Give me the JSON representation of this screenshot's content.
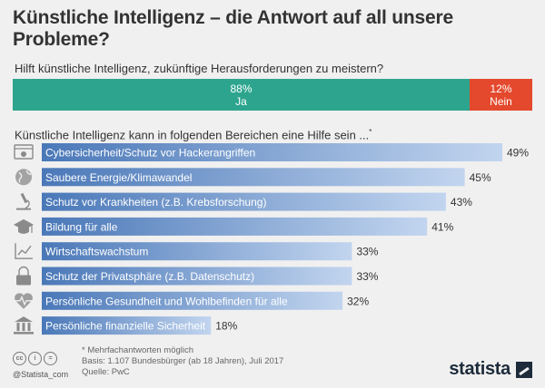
{
  "title": "Künstliche Intelligenz – die Antwort auf all unsere Probleme?",
  "question1": "Hilft künstliche Intelligenz, zukünftige Herausforderungen zu meistern?",
  "split": {
    "yes": {
      "value": 88,
      "label": "88%",
      "answer": "Ja",
      "color": "#2da58e"
    },
    "no": {
      "value": 12,
      "label": "12%",
      "answer": "Nein",
      "color": "#e4492d"
    }
  },
  "question2": "Künstliche Intelligenz kann in folgenden Bereichen eine Hilfe sein ...",
  "question2_mark": "*",
  "chart_data": {
    "type": "bar",
    "orientation": "horizontal",
    "categories": [
      "Cybersicherheit/Schutz vor Hackerangriffen",
      "Saubere Energie/Klimawandel",
      "Schutz vor Krankheiten (z.B. Krebsforschung)",
      "Bildung für alle",
      "Wirtschaftswachstum",
      "Schutz der Privatsphäre (z.B. Datenschutz)",
      "Persönliche Gesundheit und Wohlbefinden für alle",
      "Persönliche finanzielle Sicherheit"
    ],
    "values": [
      49,
      45,
      43,
      41,
      33,
      33,
      32,
      18
    ],
    "value_labels": [
      "49%",
      "45%",
      "43%",
      "41%",
      "33%",
      "33%",
      "32%",
      "18%"
    ],
    "icons": [
      "hacker-icon",
      "globe-icon",
      "microscope-icon",
      "graduation-cap-icon",
      "growth-chart-icon",
      "lock-icon",
      "heartbeat-icon",
      "bank-icon"
    ],
    "bar_color_start": "#4a78b8",
    "bar_color_end": "#c2d5ef"
  },
  "footnotes": [
    "* Mehrfachantworten möglich",
    "Basis: 1.107 Bundesbürger (ab 18 Jahren), Juli 2017",
    "Quelle: PwC"
  ],
  "license": [
    "cc",
    "i",
    "="
  ],
  "handle": "@Statista_com",
  "brand": "statista"
}
